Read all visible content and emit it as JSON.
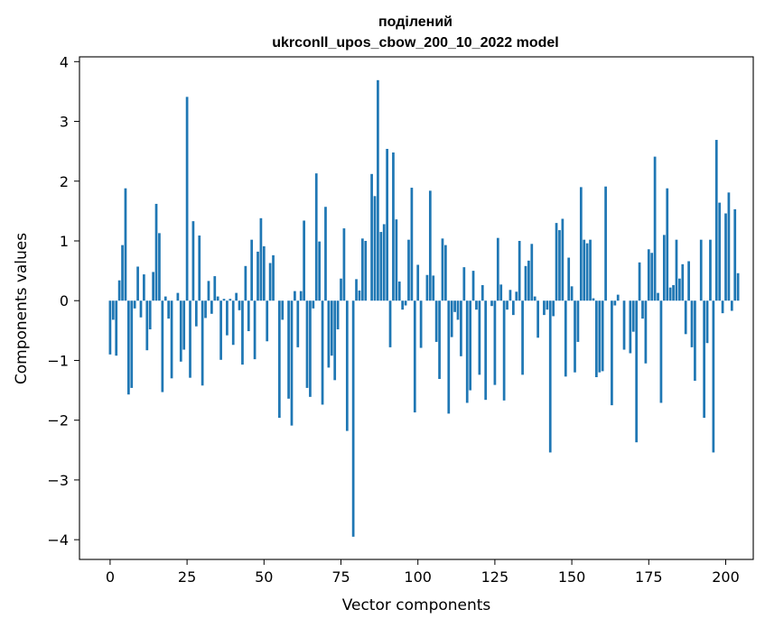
{
  "chart_data": {
    "type": "bar",
    "title_line1": "поділений",
    "title_line2": "ukrconll_upos_cbow_200_10_2022 model",
    "xlabel": "Vector components",
    "ylabel": "Components values",
    "xlim": [
      -9.95,
      208.95
    ],
    "ylim": [
      -4.33,
      4.08
    ],
    "xticks": [
      "0",
      "25",
      "50",
      "75",
      "100",
      "125",
      "150",
      "175",
      "200"
    ],
    "yticks": [
      "−4",
      "−3",
      "−2",
      "−1",
      "0",
      "1",
      "2",
      "3",
      "4"
    ],
    "grid": false,
    "bar_color": "#1f77b4",
    "values": [
      -0.9,
      -0.32,
      -0.92,
      0.34,
      0.93,
      1.88,
      -1.57,
      -1.46,
      -0.13,
      0.57,
      -0.28,
      0.44,
      -0.83,
      -0.48,
      0.48,
      1.62,
      1.13,
      -1.53,
      0.07,
      -0.3,
      -1.3,
      0.0,
      0.13,
      -1.02,
      -0.82,
      3.41,
      -1.29,
      1.33,
      -0.43,
      1.09,
      -1.42,
      -0.29,
      0.33,
      -0.22,
      0.41,
      0.07,
      -0.99,
      0.03,
      -0.58,
      0.03,
      -0.74,
      0.13,
      -0.16,
      -1.07,
      0.58,
      -0.51,
      1.02,
      -0.98,
      0.82,
      1.38,
      0.91,
      -0.68,
      0.63,
      0.76,
      0.0,
      -1.96,
      -0.32,
      0.0,
      -1.64,
      -2.09,
      0.16,
      -0.78,
      0.16,
      1.34,
      -1.46,
      -1.61,
      -0.13,
      2.13,
      0.99,
      -1.74,
      1.57,
      -1.12,
      -0.92,
      -1.33,
      -0.48,
      0.37,
      1.21,
      -2.18,
      0.0,
      -3.95,
      0.36,
      0.17,
      1.04,
      1.0,
      0.0,
      2.12,
      1.75,
      3.69,
      1.15,
      1.28,
      2.54,
      -0.78,
      2.48,
      1.36,
      0.32,
      -0.15,
      -0.08,
      1.02,
      1.89,
      -1.87,
      0.6,
      -0.79,
      0.0,
      0.43,
      1.84,
      0.42,
      -0.69,
      -1.31,
      1.04,
      0.93,
      -1.89,
      -0.61,
      -0.19,
      -0.32,
      -0.93,
      0.56,
      -1.71,
      -1.5,
      0.5,
      -0.15,
      -1.24,
      0.26,
      -1.66,
      0.0,
      -0.09,
      -1.41,
      1.05,
      0.27,
      -1.67,
      -0.15,
      0.18,
      -0.24,
      0.15,
      1.0,
      -1.24,
      0.58,
      0.67,
      0.95,
      0.07,
      -0.62,
      0.0,
      -0.24,
      -0.15,
      -2.54,
      -0.26,
      1.3,
      1.18,
      1.37,
      -1.27,
      0.72,
      0.24,
      -1.2,
      -0.69,
      1.9,
      1.02,
      0.96,
      1.02,
      0.04,
      -1.28,
      -1.2,
      -1.18,
      1.91,
      0.0,
      -1.75,
      -0.08,
      0.1,
      0.0,
      -0.82,
      0.0,
      -0.88,
      -0.52,
      -2.37,
      0.64,
      -0.3,
      -1.05,
      0.86,
      0.8,
      2.41,
      0.13,
      -1.71,
      1.1,
      1.88,
      0.22,
      0.26,
      1.02,
      0.37,
      0.61,
      -0.56,
      0.66,
      -0.78,
      -1.34,
      0.0,
      1.02,
      -1.96,
      -0.71,
      1.02,
      -2.54,
      2.69,
      1.64,
      -0.21,
      1.46,
      1.81,
      -0.17,
      1.53,
      0.46
    ]
  }
}
